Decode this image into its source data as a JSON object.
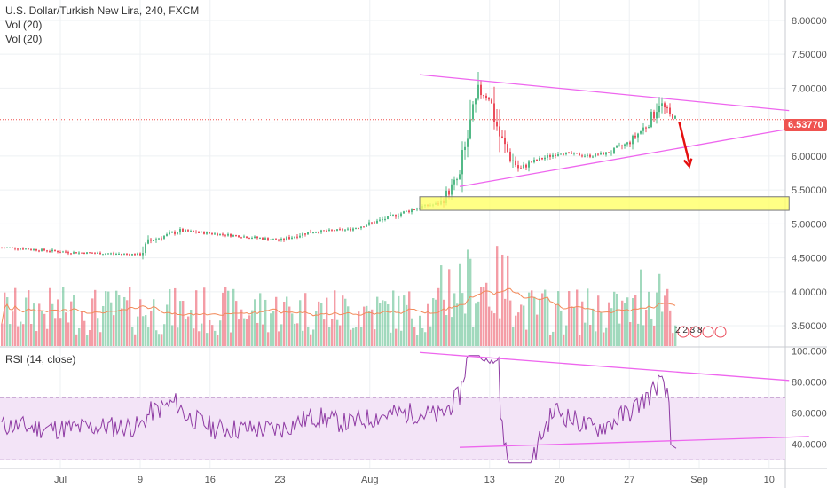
{
  "main_legend": {
    "symbol": "U.S. Dollar/Turkish New Lira, 240, FXCM",
    "vol1": "Vol (20)",
    "vol2": "Vol (20)"
  },
  "rsi_legend": "RSI (14, close)",
  "price_label": "6.53770",
  "events_badge": "2 2 3 8",
  "colors": {
    "up": "#53b987",
    "down": "#eb4d5c",
    "trendline": "#ee66ee",
    "zone_fill": "#ffff66",
    "arrow": "#e51010",
    "rsi_line": "#8e3aa3",
    "rsi_band": "#f3e4f7",
    "vol_ma": "#f28a5a",
    "price_line": "#ef5350"
  },
  "chart_data": [
    {
      "type": "candlestick",
      "title": "U.S. Dollar/Turkish New Lira, 240, FXCM",
      "y_ticks": [
        "3.50000",
        "4.00000",
        "4.50000",
        "5.00000",
        "5.50000",
        "6.00000",
        "6.50000",
        "7.00000",
        "7.50000",
        "8.00000"
      ],
      "x_ticks": [
        "Jul",
        "9",
        "16",
        "23",
        "Aug",
        "13",
        "20",
        "27",
        "Sep",
        "10"
      ],
      "ylim": [
        3.2,
        8.3
      ],
      "last_price": 6.5377,
      "close_path": [
        [
          "Jun 26",
          4.65
        ],
        [
          "Jul 2",
          4.58
        ],
        [
          "Jul 9",
          4.55
        ],
        [
          "Jul 10",
          4.75
        ],
        [
          "Jul 13",
          4.9
        ],
        [
          "Jul 16",
          4.86
        ],
        [
          "Jul 19",
          4.82
        ],
        [
          "Jul 23",
          4.76
        ],
        [
          "Jul 26",
          4.88
        ],
        [
          "Jul 30",
          4.92
        ],
        [
          "Aug 2",
          5.05
        ],
        [
          "Aug 6",
          5.25
        ],
        [
          "Aug 8",
          5.3
        ],
        [
          "Aug 10",
          5.7
        ],
        [
          "Aug 11",
          6.4
        ],
        [
          "Aug 12",
          6.95
        ],
        [
          "Aug 13",
          6.85
        ],
        [
          "Aug 14",
          6.3
        ],
        [
          "Aug 15",
          6.0
        ],
        [
          "Aug 16",
          5.8
        ],
        [
          "Aug 17",
          5.9
        ],
        [
          "Aug 20",
          6.05
        ],
        [
          "Aug 23",
          6.0
        ],
        [
          "Aug 25",
          6.05
        ],
        [
          "Aug 27",
          6.2
        ],
        [
          "Aug 29",
          6.5
        ],
        [
          "Aug 30",
          6.8
        ],
        [
          "Aug 31",
          6.6
        ],
        [
          "Sep 1",
          6.54
        ]
      ],
      "annotations": [
        {
          "type": "trendline",
          "from": [
            "Aug 6",
            7.2
          ],
          "to": [
            "Sep 12",
            6.67
          ]
        },
        {
          "type": "trendline",
          "from": [
            "Aug 10",
            5.55
          ],
          "to": [
            "Sep 12",
            6.4
          ]
        },
        {
          "type": "zone",
          "from": [
            "Aug 6",
            5.4
          ],
          "to": [
            "Sep 12",
            5.2
          ]
        },
        {
          "type": "arrow",
          "from": [
            "Sep 1",
            6.5
          ],
          "to": [
            "Sep 2",
            5.85
          ]
        }
      ]
    },
    {
      "type": "line",
      "title": "RSI (14, close)",
      "y_ticks": [
        "40.0000",
        "60.0000",
        "80.0000",
        "100.0000"
      ],
      "ylim": [
        25,
        102
      ],
      "bands": [
        30,
        70
      ],
      "last_value": 38
    }
  ]
}
